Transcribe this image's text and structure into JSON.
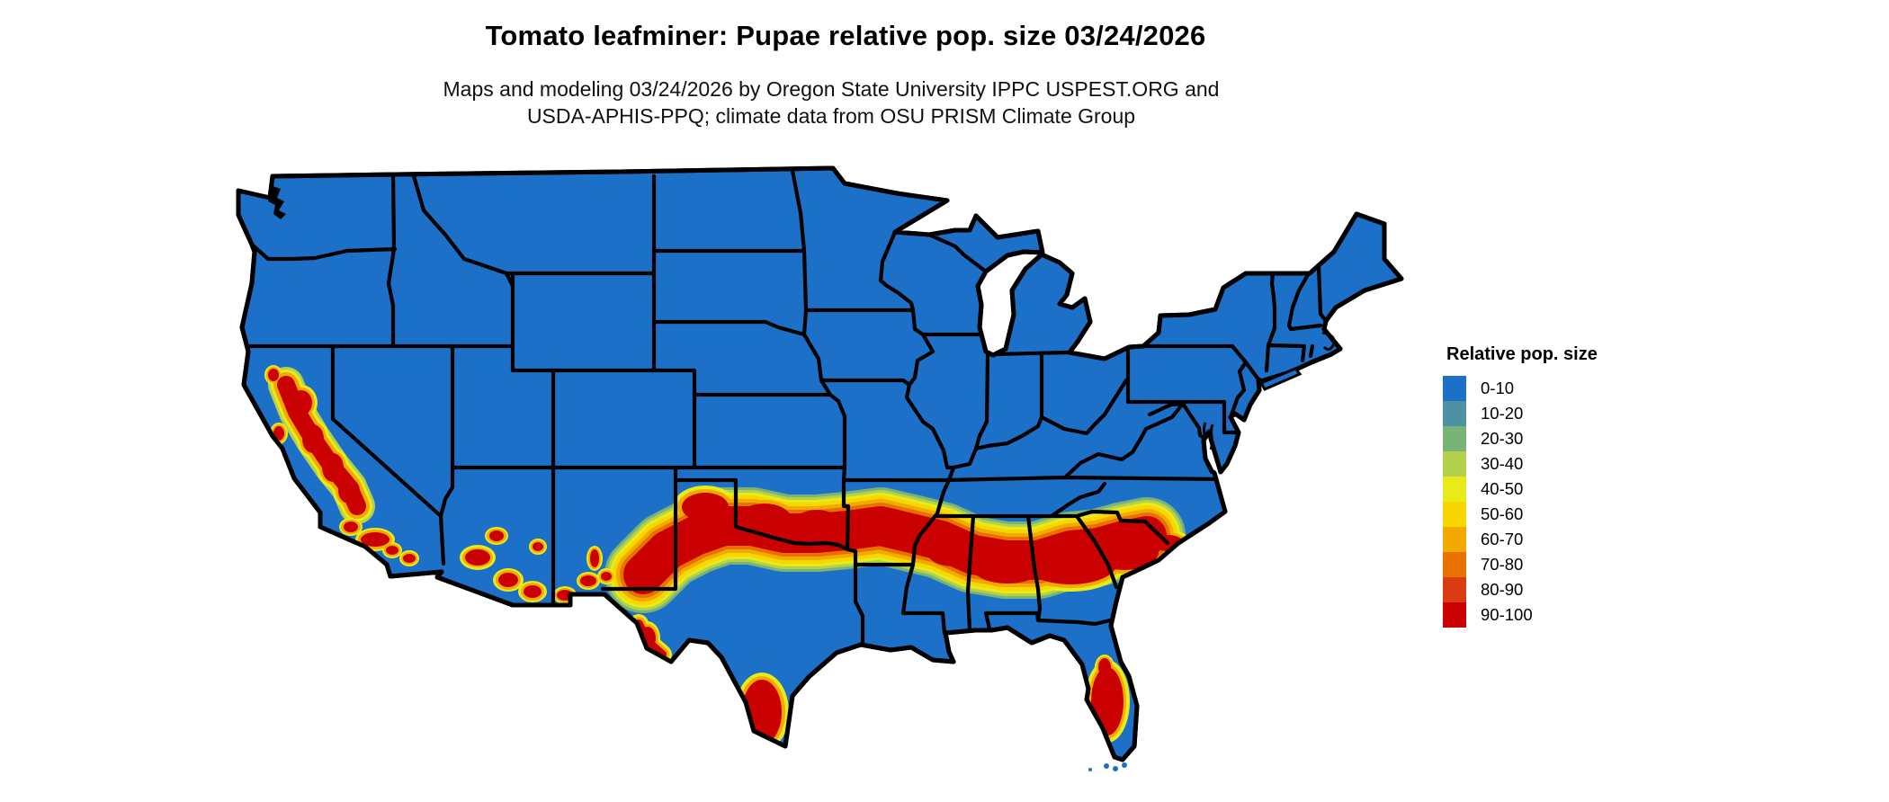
{
  "header": {
    "title": "Tomato leafminer: Pupae relative pop. size 03/24/2026",
    "subtitle_line1": "Maps and modeling 03/24/2026 by Oregon State University IPPC USPEST.ORG and",
    "subtitle_line2": "USDA-APHIS-PPQ; climate data from OSU PRISM Climate Group"
  },
  "legend": {
    "title": "Relative pop. size",
    "items": [
      {
        "label": "0-10",
        "color": "#1c70c8"
      },
      {
        "label": "10-20",
        "color": "#4e91a3"
      },
      {
        "label": "20-30",
        "color": "#7ab377"
      },
      {
        "label": "30-40",
        "color": "#b4d14d"
      },
      {
        "label": "40-50",
        "color": "#e7eb19"
      },
      {
        "label": "50-60",
        "color": "#f8d700"
      },
      {
        "label": "60-70",
        "color": "#f2a900"
      },
      {
        "label": "70-80",
        "color": "#e87200"
      },
      {
        "label": "80-90",
        "color": "#d83c10"
      },
      {
        "label": "90-100",
        "color": "#cb0000"
      }
    ]
  },
  "map": {
    "region": "Contiguous United States",
    "background_color": "#ffffff",
    "base_color": "#1c70c8",
    "border_color": "#000000",
    "high_population_regions": [
      "California Central Valley and coastal ranges",
      "Southern California",
      "Southern Arizona and New Mexico border area",
      "West Texas Rio Grande valley",
      "Band across northern Texas / southern Oklahoma through Arkansas, Mississippi, Alabama, Georgia and South Carolina",
      "Southern Texas (Rio Grande Valley)",
      "Central and southern Florida"
    ]
  }
}
